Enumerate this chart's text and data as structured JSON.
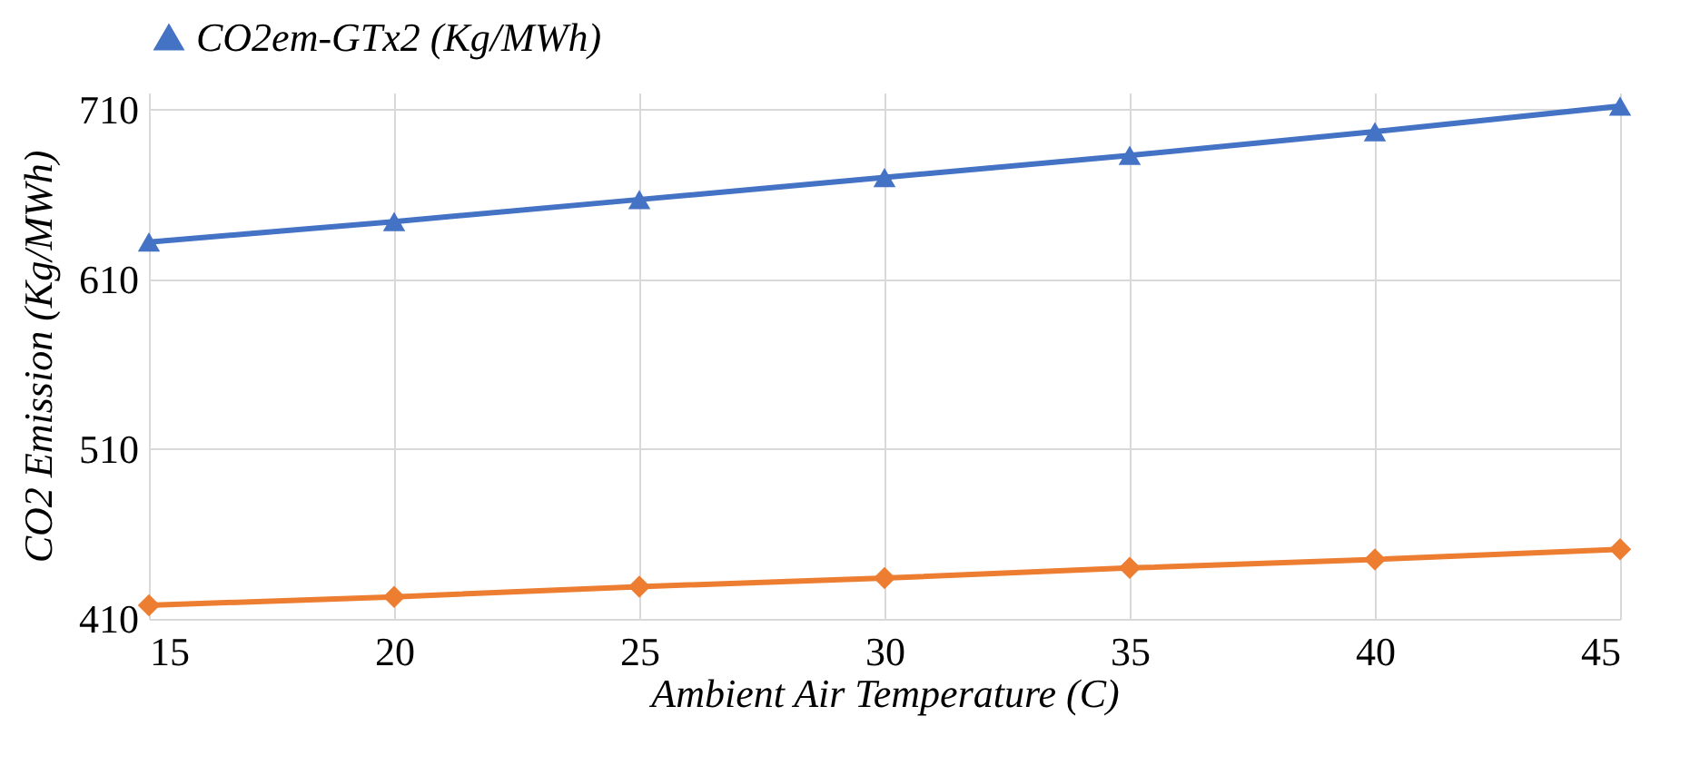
{
  "chart_data": {
    "type": "line",
    "xlabel": "Ambient Air Temperature (C)",
    "ylabel": "CO2 Emission (Kg/MWh)",
    "x": [
      15,
      20,
      25,
      30,
      35,
      40,
      45
    ],
    "xlim": [
      15,
      45
    ],
    "xticks": [
      15,
      20,
      25,
      30,
      35,
      40,
      45
    ],
    "ylim": [
      410,
      720
    ],
    "yticks": [
      410,
      510,
      610,
      710
    ],
    "grid": true,
    "legend": "top",
    "line_style": "solid",
    "series": [
      {
        "name": "CO2em-GTx2 (Kg/MWh)",
        "color": "#4472c4",
        "marker": "triangle",
        "values": [
          632,
          644,
          657,
          670,
          683,
          697,
          712
        ]
      },
      {
        "color": "#ed7d31",
        "marker": "diamond",
        "values": [
          418,
          423,
          429,
          434,
          440,
          445,
          451
        ]
      }
    ]
  }
}
